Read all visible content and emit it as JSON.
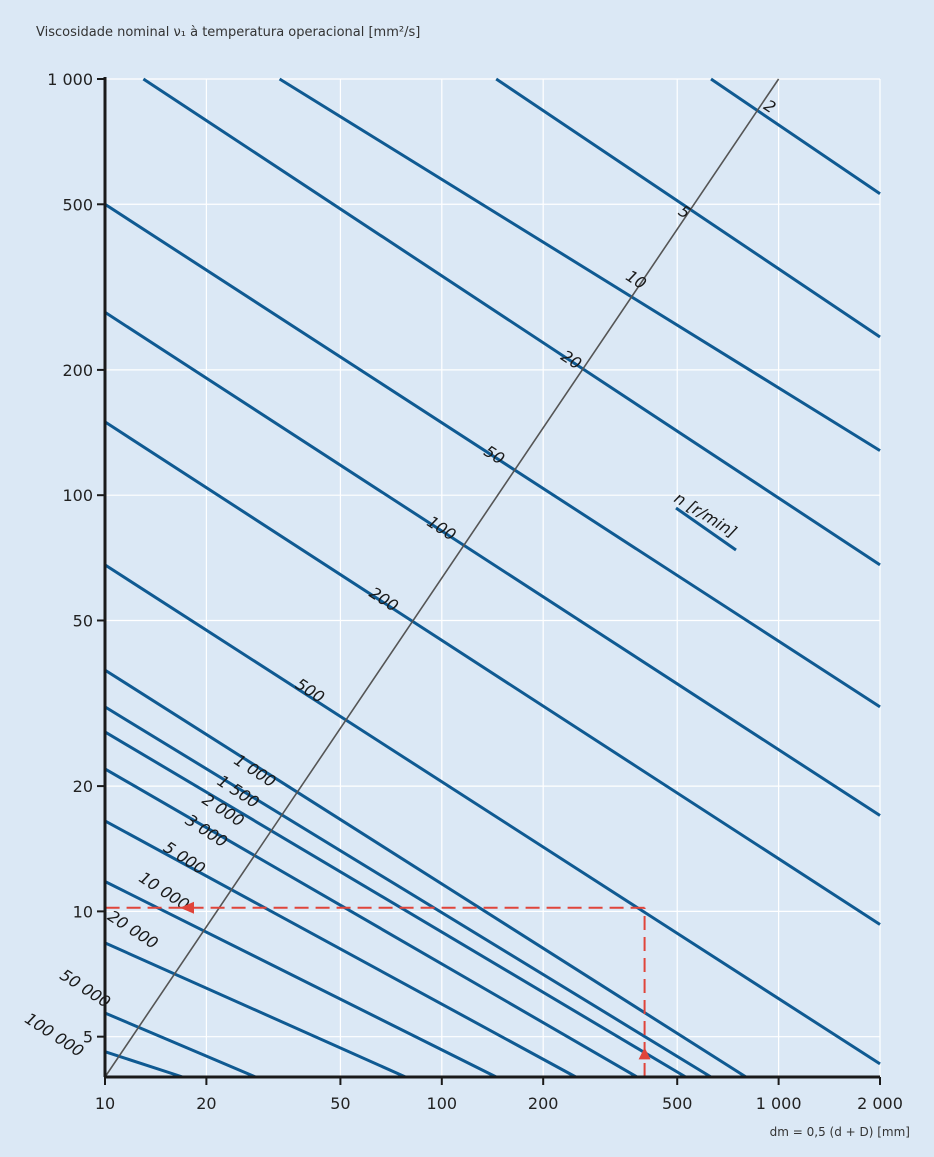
{
  "chart_data": {
    "type": "line",
    "title": "Viscosidade nominal ν₁ à temperatura operacional [mm²/s]",
    "xlabel": "dm = 0,5 (d + D) [mm]",
    "ylabel": "",
    "x_scale": "log",
    "y_scale": "log",
    "xlim": [
      10,
      2000
    ],
    "ylim": [
      4,
      1000
    ],
    "x_ticks": [
      10,
      20,
      50,
      100,
      200,
      500,
      1000,
      2000
    ],
    "x_tick_labels": [
      "10",
      "20",
      "50",
      "100",
      "200",
      "500",
      "1 000",
      "2 000"
    ],
    "y_ticks": [
      5,
      10,
      20,
      50,
      100,
      200,
      500,
      1000
    ],
    "y_tick_labels": [
      "5",
      "10",
      "20",
      "50",
      "100",
      "200",
      "500",
      "1 000"
    ],
    "grid": true,
    "legend": {
      "label": "n [r/min]",
      "placement": "center-right"
    },
    "speed_axis_note": "speed scale drawn as a diagonal line; each labelled speed marks where its curve crosses the diagonal",
    "series": [
      {
        "name": "2",
        "points": [
          [
            630,
            1000
          ],
          [
            2000,
            530
          ]
        ]
      },
      {
        "name": "5",
        "points": [
          [
            145,
            1000
          ],
          [
            2000,
            240
          ]
        ]
      },
      {
        "name": "10",
        "points": [
          [
            33,
            1000
          ],
          [
            2000,
            128
          ]
        ]
      },
      {
        "name": "20",
        "points": [
          [
            13,
            1000
          ],
          [
            2000,
            68
          ]
        ]
      },
      {
        "name": "50",
        "points": [
          [
            10,
            500
          ],
          [
            2000,
            31
          ]
        ]
      },
      {
        "name": "100",
        "points": [
          [
            10,
            275
          ],
          [
            2000,
            17
          ]
        ]
      },
      {
        "name": "200",
        "points": [
          [
            10,
            150
          ],
          [
            2000,
            9.3
          ]
        ]
      },
      {
        "name": "500",
        "points": [
          [
            10,
            68
          ],
          [
            2000,
            4.3
          ]
        ]
      },
      {
        "name": "1 000",
        "points": [
          [
            10,
            38
          ],
          [
            800,
            4
          ]
        ]
      },
      {
        "name": "1 500",
        "points": [
          [
            10,
            31
          ],
          [
            630,
            4
          ]
        ]
      },
      {
        "name": "2 000",
        "points": [
          [
            10,
            27
          ],
          [
            530,
            4
          ]
        ]
      },
      {
        "name": "3 000",
        "points": [
          [
            10,
            22
          ],
          [
            380,
            4
          ]
        ]
      },
      {
        "name": "5 000",
        "points": [
          [
            10,
            16.5
          ],
          [
            250,
            4
          ]
        ]
      },
      {
        "name": "10 000",
        "points": [
          [
            10,
            11.8
          ],
          [
            145,
            4
          ]
        ]
      },
      {
        "name": "20 000",
        "points": [
          [
            10,
            8.4
          ],
          [
            78,
            4
          ]
        ]
      },
      {
        "name": "50 000",
        "points": [
          [
            10,
            5.7
          ],
          [
            28,
            4
          ]
        ]
      },
      {
        "name": "100 000",
        "points": [
          [
            10,
            4.6
          ],
          [
            17,
            4
          ]
        ]
      }
    ],
    "speed_scale_line": {
      "points": [
        [
          10,
          4
        ],
        [
          1000,
          1000
        ]
      ],
      "color": "#555555"
    },
    "speed_labels": [
      {
        "text": "2",
        "x": 860,
        "y": 860
      },
      {
        "text": "5",
        "x": 480,
        "y": 480
      },
      {
        "text": "10",
        "x": 335,
        "y": 335
      },
      {
        "text": "20",
        "x": 215,
        "y": 215
      },
      {
        "text": "50",
        "x": 127,
        "y": 127
      },
      {
        "text": "100",
        "x": 86,
        "y": 86
      },
      {
        "text": "200",
        "x": 58,
        "y": 58
      },
      {
        "text": "500",
        "x": 35,
        "y": 35
      },
      {
        "text": "1 000",
        "x": 23,
        "y": 23
      },
      {
        "text": "1 500",
        "x": 20.5,
        "y": 20.5
      },
      {
        "text": "2 000",
        "x": 18.5,
        "y": 18.5
      },
      {
        "text": "3 000",
        "x": 16.5,
        "y": 16.5
      },
      {
        "text": "5 000",
        "x": 14.2,
        "y": 14.2
      },
      {
        "text": "10 000",
        "x": 12,
        "y": 12
      },
      {
        "text": "20 000",
        "x": 9.7,
        "y": 9.7
      },
      {
        "text": "50 000",
        "x": 7,
        "y": 7
      },
      {
        "text": "100 000",
        "x": 5.5,
        "y": 5.5
      }
    ],
    "annotation": {
      "vertical_arrow": {
        "x": 400,
        "from_y": 4,
        "to_y": 10.2
      },
      "horizontal_arrow": {
        "y": 10.2,
        "from_x": 400,
        "to_x": 10
      }
    },
    "colors": {
      "background": "#dbe8f5",
      "curve": "#0f5a92",
      "grid": "#ffffff",
      "axis": "#1a1a1a",
      "annotation": "#e0443a"
    }
  }
}
